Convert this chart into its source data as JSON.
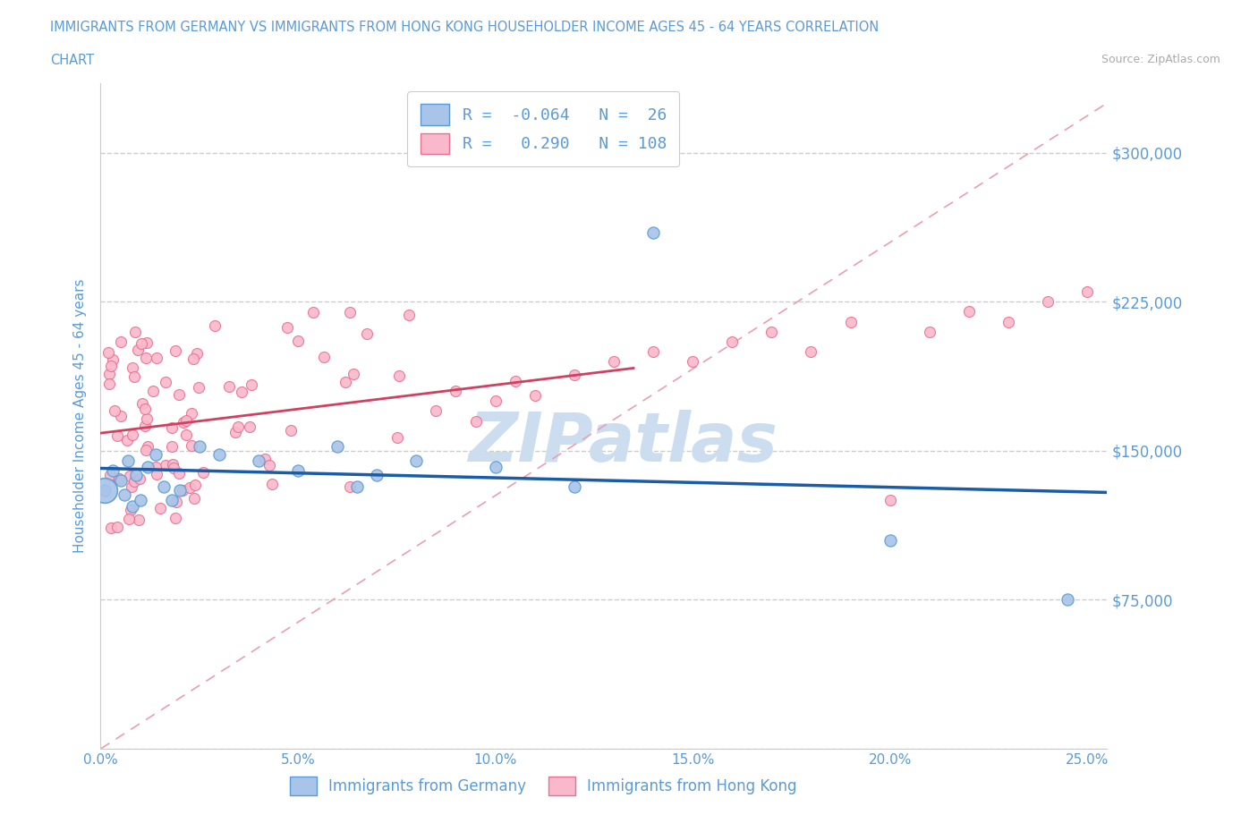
{
  "title_line1": "IMMIGRANTS FROM GERMANY VS IMMIGRANTS FROM HONG KONG HOUSEHOLDER INCOME AGES 45 - 64 YEARS CORRELATION",
  "title_line2": "CHART",
  "source": "Source: ZipAtlas.com",
  "ylabel": "Householder Income Ages 45 - 64 years",
  "germany_color": "#a8c4e8",
  "hongkong_color": "#f9b8cb",
  "germany_edge_color": "#5b9bd5",
  "hongkong_edge_color": "#e87090",
  "trend_germany_color": "#1a5ca8",
  "trend_hongkong_color": "#d04060",
  "diag_line_color": "#e8a0b0",
  "label_color": "#5b9bd5",
  "title_color": "#5b9bd5",
  "source_color": "#aaaaaa",
  "R_germany": -0.064,
  "N_germany": 26,
  "R_hongkong": 0.29,
  "N_hongkong": 108,
  "xlim": [
    0.0,
    0.255
  ],
  "ylim": [
    0,
    335000
  ],
  "yticks": [
    0,
    75000,
    150000,
    225000,
    300000
  ],
  "xticks": [
    0.0,
    0.05,
    0.1,
    0.15,
    0.2,
    0.25
  ],
  "watermark": "ZIPatlas",
  "watermark_color": "#ccddf0",
  "background_color": "#ffffff",
  "grid_color": "#cccccc",
  "legend_edge_color": "#cccccc"
}
